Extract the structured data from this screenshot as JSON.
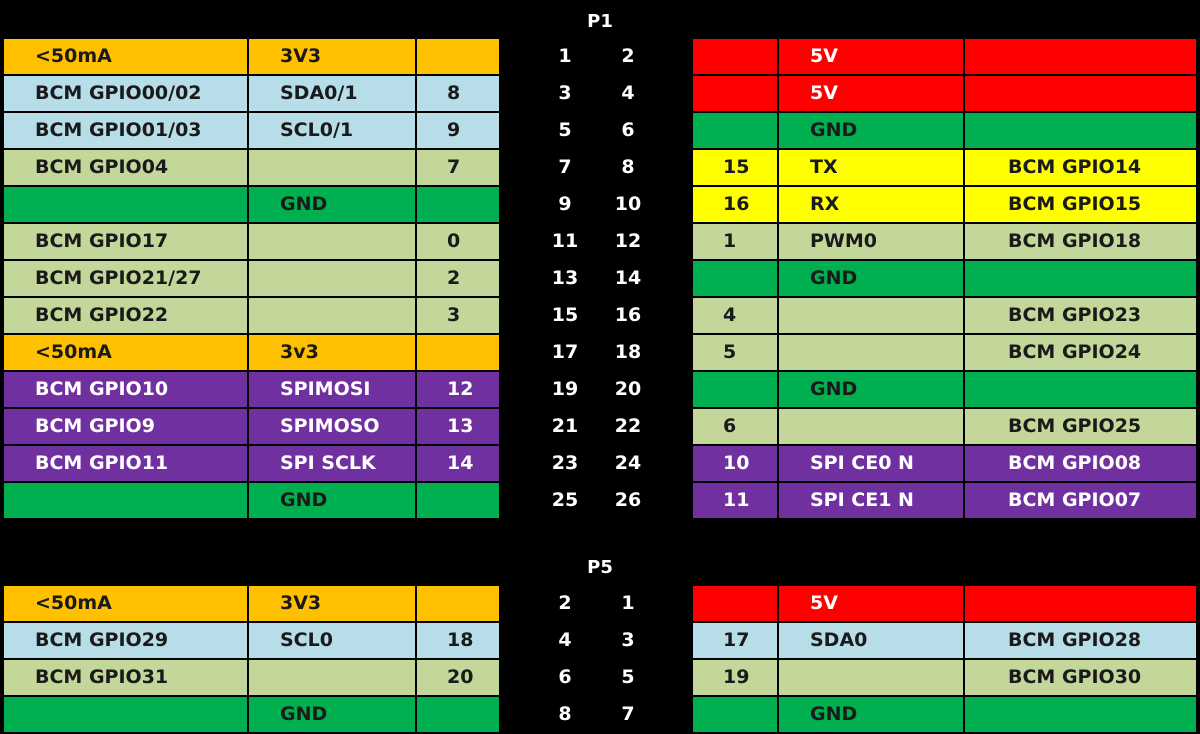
{
  "colors": {
    "orange": "#FFC000",
    "light_blue": "#B7DDE8",
    "olive": "#C4D79B",
    "green": "#00B050",
    "red": "#FF0000",
    "yellow": "#FFFF00",
    "purple": "#7030A0",
    "background": "#000000"
  },
  "p1": {
    "title": "P1",
    "rows": [
      {
        "l": [
          "<50mA",
          "3V3",
          ""
        ],
        "lc": "orange",
        "pins": [
          "1",
          "2"
        ],
        "r": [
          "",
          "5V",
          ""
        ],
        "rc": "red"
      },
      {
        "l": [
          "BCM GPIO00/02",
          "SDA0/1",
          "8"
        ],
        "lc": "light_blue",
        "pins": [
          "3",
          "4"
        ],
        "r": [
          "",
          "5V",
          ""
        ],
        "rc": "red"
      },
      {
        "l": [
          "BCM GPIO01/03",
          "SCL0/1",
          "9"
        ],
        "lc": "light_blue",
        "pins": [
          "5",
          "6"
        ],
        "r": [
          "",
          "GND",
          ""
        ],
        "rc": "green"
      },
      {
        "l": [
          "BCM GPIO04",
          "",
          "7"
        ],
        "lc": "olive",
        "pins": [
          "7",
          "8"
        ],
        "r": [
          "15",
          "TX",
          "BCM GPIO14"
        ],
        "rc": "yellow"
      },
      {
        "l": [
          "",
          "GND",
          ""
        ],
        "lc": "green",
        "pins": [
          "9",
          "10"
        ],
        "r": [
          "16",
          "RX",
          "BCM GPIO15"
        ],
        "rc": "yellow"
      },
      {
        "l": [
          "BCM GPIO17",
          "",
          "0"
        ],
        "lc": "olive",
        "pins": [
          "11",
          "12"
        ],
        "r": [
          "1",
          "PWM0",
          "BCM GPIO18"
        ],
        "rc": "olive"
      },
      {
        "l": [
          "BCM GPIO21/27",
          "",
          "2"
        ],
        "lc": "olive",
        "pins": [
          "13",
          "14"
        ],
        "r": [
          "",
          "GND",
          ""
        ],
        "rc": "green"
      },
      {
        "l": [
          "BCM GPIO22",
          "",
          "3"
        ],
        "lc": "olive",
        "pins": [
          "15",
          "16"
        ],
        "r": [
          "4",
          "",
          "BCM GPIO23"
        ],
        "rc": "olive"
      },
      {
        "l": [
          "<50mA",
          "3v3",
          ""
        ],
        "lc": "orange",
        "pins": [
          "17",
          "18"
        ],
        "r": [
          "5",
          "",
          "BCM GPIO24"
        ],
        "rc": "olive"
      },
      {
        "l": [
          "BCM GPIO10",
          "SPIMOSI",
          "12"
        ],
        "lc": "purple",
        "pins": [
          "19",
          "20"
        ],
        "r": [
          "",
          "GND",
          ""
        ],
        "rc": "green"
      },
      {
        "l": [
          "BCM GPIO9",
          "SPIMOSO",
          "13"
        ],
        "lc": "purple",
        "pins": [
          "21",
          "22"
        ],
        "r": [
          "6",
          "",
          "BCM GPIO25"
        ],
        "rc": "olive"
      },
      {
        "l": [
          "BCM GPIO11",
          "SPI SCLK",
          "14"
        ],
        "lc": "purple",
        "pins": [
          "23",
          "24"
        ],
        "r": [
          "10",
          "SPI CE0 N",
          "BCM GPIO08"
        ],
        "rc": "purple"
      },
      {
        "l": [
          "",
          "GND",
          ""
        ],
        "lc": "green",
        "pins": [
          "25",
          "26"
        ],
        "r": [
          "11",
          "SPI CE1 N",
          "BCM GPIO07"
        ],
        "rc": "purple"
      }
    ]
  },
  "p5": {
    "title": "P5",
    "rows": [
      {
        "l": [
          "<50mA",
          "3V3",
          ""
        ],
        "lc": "orange",
        "pins": [
          "2",
          "1"
        ],
        "r": [
          "",
          "5V",
          ""
        ],
        "rc": "red"
      },
      {
        "l": [
          "BCM GPIO29",
          "SCL0",
          "18"
        ],
        "lc": "light_blue",
        "pins": [
          "4",
          "3"
        ],
        "r": [
          "17",
          "SDA0",
          "BCM GPIO28"
        ],
        "rc": "light_blue"
      },
      {
        "l": [
          "BCM GPIO31",
          "",
          "20"
        ],
        "lc": "olive",
        "pins": [
          "6",
          "5"
        ],
        "r": [
          "19",
          "",
          "BCM GPIO30"
        ],
        "rc": "olive"
      },
      {
        "l": [
          "",
          "GND",
          ""
        ],
        "lc": "green",
        "pins": [
          "8",
          "7"
        ],
        "r": [
          "",
          "GND",
          ""
        ],
        "rc": "green"
      }
    ]
  }
}
